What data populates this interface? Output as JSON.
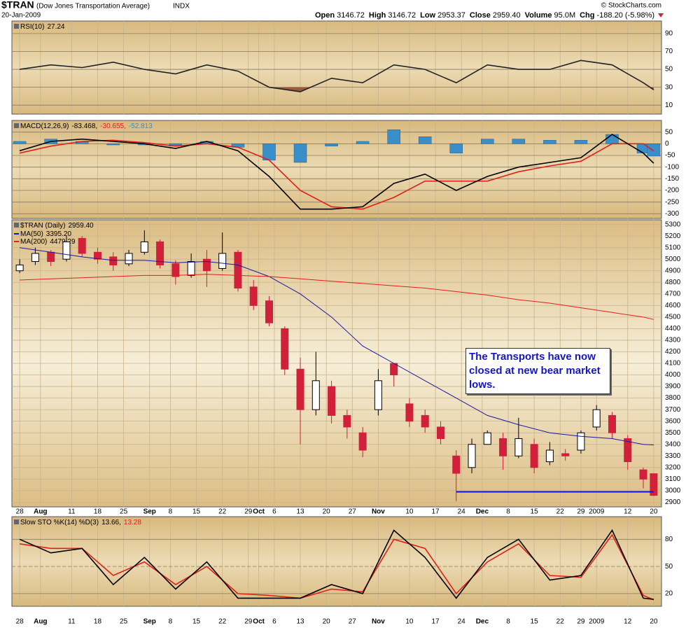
{
  "header": {
    "symbol": "$TRAN",
    "description": "(Dow Jones Transportation Average)",
    "exchange": "INDX",
    "date": "20-Jan-2009",
    "stats": [
      {
        "label": "Open",
        "value": "3146.72"
      },
      {
        "label": "High",
        "value": "3146.72"
      },
      {
        "label": "Low",
        "value": "2953.37"
      },
      {
        "label": "Close",
        "value": "2959.40"
      },
      {
        "label": "Volume",
        "value": "95.0M"
      },
      {
        "label": "Chg",
        "value": "-188.20 (-5.98%)"
      }
    ],
    "copyright": "© StockCharts.com"
  },
  "chart_data": [
    {
      "type": "line",
      "label_parts": [
        {
          "text": "RSI(10)",
          "color": "#000000"
        },
        {
          "text": "27.24",
          "color": "#000000"
        }
      ],
      "ylim": [
        0,
        104
      ],
      "yticks": [
        10,
        30,
        50,
        70,
        90
      ],
      "fill_below": 30,
      "fill_color": "#9b5a3c",
      "x": [
        0,
        6,
        12,
        18,
        24,
        30,
        36,
        42,
        48,
        54,
        60,
        66,
        72,
        78,
        84,
        90,
        96,
        102,
        108,
        114,
        120,
        122
      ],
      "series": [
        {
          "name": "RSI(10)",
          "color": "#222222",
          "kind": "line",
          "values": [
            50,
            55,
            52,
            58,
            50,
            45,
            55,
            48,
            30,
            25,
            40,
            35,
            55,
            50,
            35,
            55,
            50,
            50,
            60,
            55,
            35,
            27.24
          ]
        }
      ]
    },
    {
      "type": "combo",
      "label_parts": [
        {
          "text": "MACD(12,26,9)",
          "color": "#000000"
        },
        {
          "text": "-83.468,",
          "color": "#000000"
        },
        {
          "text": "-30.655,",
          "color": "#e0201a"
        },
        {
          "text": "-52.813",
          "color": "#3a8fc8"
        }
      ],
      "ylim": [
        -320,
        100
      ],
      "yticks": [
        50,
        0,
        -50,
        -100,
        -150,
        -200,
        -250,
        -300
      ],
      "x": [
        0,
        6,
        12,
        18,
        24,
        30,
        36,
        42,
        48,
        54,
        60,
        66,
        72,
        78,
        84,
        90,
        96,
        102,
        108,
        114,
        120,
        122
      ],
      "series": [
        {
          "name": "Histogram",
          "color": "#3a8fc8",
          "kind": "histogram",
          "values": [
            10,
            20,
            10,
            -5,
            -5,
            -10,
            10,
            -15,
            -70,
            -80,
            -10,
            10,
            60,
            30,
            -40,
            20,
            20,
            15,
            15,
            40,
            -40,
            -52.813
          ]
        },
        {
          "name": "Signal",
          "color": "#e0201a",
          "kind": "line",
          "values": [
            -40,
            -10,
            10,
            15,
            5,
            -10,
            0,
            -15,
            -70,
            -200,
            -270,
            -280,
            -230,
            -160,
            -160,
            -160,
            -120,
            -95,
            -75,
            0,
            0,
            -30.655
          ]
        },
        {
          "name": "MACD",
          "color": "#000000",
          "kind": "line",
          "values": [
            -30,
            10,
            20,
            10,
            0,
            -20,
            10,
            -30,
            -140,
            -280,
            -280,
            -270,
            -170,
            -130,
            -200,
            -140,
            -100,
            -80,
            -60,
            40,
            -40,
            -83.468
          ]
        }
      ]
    },
    {
      "type": "candlestick",
      "label_parts": [
        {
          "text": "$TRAN (Daily)",
          "color": "#000000"
        },
        {
          "text": "2959.40",
          "color": "#000000"
        }
      ],
      "ylim": [
        2860,
        5340
      ],
      "yticks": [
        2900,
        3000,
        3100,
        3200,
        3300,
        3400,
        3500,
        3600,
        3700,
        3800,
        3900,
        4000,
        4100,
        4200,
        4300,
        4400,
        4500,
        4600,
        4700,
        4800,
        4900,
        5000,
        5100,
        5200,
        5300
      ],
      "xlim": [
        -1.5,
        123.5
      ],
      "xticks": [
        {
          "value": 0,
          "label": "28"
        },
        {
          "value": 4,
          "label": "Aug"
        },
        {
          "value": 10,
          "label": "11"
        },
        {
          "value": 15,
          "label": "18"
        },
        {
          "value": 20,
          "label": "25"
        },
        {
          "value": 25,
          "label": "Sep"
        },
        {
          "value": 29,
          "label": "8"
        },
        {
          "value": 34,
          "label": "15"
        },
        {
          "value": 39,
          "label": "22"
        },
        {
          "value": 44,
          "label": "29"
        },
        {
          "value": 46,
          "label": "Oct"
        },
        {
          "value": 49,
          "label": "6"
        },
        {
          "value": 54,
          "label": "13"
        },
        {
          "value": 59,
          "label": "20"
        },
        {
          "value": 64,
          "label": "27"
        },
        {
          "value": 69,
          "label": "Nov"
        },
        {
          "value": 75,
          "label": "10"
        },
        {
          "value": 80,
          "label": "17"
        },
        {
          "value": 85,
          "label": "24"
        },
        {
          "value": 89,
          "label": "Dec"
        },
        {
          "value": 94,
          "label": "8"
        },
        {
          "value": 99,
          "label": "15"
        },
        {
          "value": 104,
          "label": "22"
        },
        {
          "value": 108,
          "label": "29"
        },
        {
          "value": 111,
          "label": "2009"
        },
        {
          "value": 117,
          "label": "12"
        },
        {
          "value": 122,
          "label": "20"
        }
      ],
      "candles": {
        "x": [
          0,
          3,
          6,
          9,
          12,
          15,
          18,
          21,
          24,
          27,
          30,
          33,
          36,
          39,
          42,
          45,
          48,
          51,
          54,
          57,
          60,
          63,
          66,
          69,
          72,
          75,
          78,
          81,
          84,
          87,
          90,
          93,
          96,
          99,
          102,
          105,
          108,
          111,
          114,
          117,
          120,
          122
        ],
        "open": [
          4900,
          4980,
          5060,
          5000,
          5180,
          5060,
          5020,
          4960,
          5060,
          5150,
          4960,
          4860,
          5000,
          4920,
          5060,
          4760,
          4640,
          4400,
          4050,
          3700,
          3900,
          3650,
          3500,
          3700,
          4100,
          3750,
          3650,
          3550,
          3300,
          3200,
          3400,
          3450,
          3300,
          3400,
          3250,
          3320,
          3350,
          3550,
          3650,
          3450,
          3180,
          3146.72
        ],
        "high": [
          5000,
          5100,
          5080,
          5200,
          5200,
          5100,
          5060,
          5080,
          5250,
          5170,
          4990,
          5050,
          5080,
          5230,
          5080,
          4820,
          4680,
          4420,
          4150,
          4200,
          3950,
          3700,
          3550,
          4050,
          4100,
          3800,
          3700,
          3600,
          3350,
          3450,
          3520,
          3500,
          3630,
          3450,
          3420,
          3360,
          3520,
          3740,
          3680,
          3480,
          3200,
          3146.72
        ],
        "low": [
          4880,
          4950,
          4940,
          4980,
          5020,
          4960,
          4900,
          4940,
          5040,
          4920,
          4780,
          4840,
          4760,
          4900,
          4720,
          4560,
          4420,
          4000,
          3400,
          3650,
          3580,
          3450,
          3290,
          3650,
          3900,
          3550,
          3500,
          3400,
          2910,
          3150,
          3400,
          3180,
          3280,
          3150,
          3220,
          3260,
          3320,
          3520,
          3450,
          3180,
          3020,
          2953.37
        ],
        "close": [
          4950,
          5050,
          4980,
          5150,
          5050,
          5000,
          4950,
          5050,
          5150,
          4950,
          4850,
          4980,
          4900,
          5050,
          4750,
          4600,
          4450,
          4050,
          3700,
          3950,
          3650,
          3550,
          3350,
          3950,
          4000,
          3600,
          3550,
          3450,
          3150,
          3400,
          3500,
          3300,
          3450,
          3200,
          3350,
          3300,
          3500,
          3700,
          3500,
          3250,
          3100,
          2959.4
        ],
        "up_color": "#ffffff",
        "down_color": "#d0203a"
      },
      "x": [
        0,
        6,
        12,
        18,
        24,
        30,
        36,
        42,
        48,
        54,
        60,
        66,
        72,
        78,
        84,
        90,
        96,
        102,
        108,
        114,
        120,
        122
      ],
      "series": [
        {
          "name": "MA(50)",
          "last_label": "3395.20",
          "color": "#1a1aa0",
          "kind": "line",
          "values": [
            5100,
            5060,
            5020,
            4990,
            4990,
            4970,
            4980,
            4950,
            4850,
            4700,
            4500,
            4250,
            4100,
            3950,
            3800,
            3650,
            3570,
            3500,
            3470,
            3450,
            3400,
            3395.2
          ]
        },
        {
          "name": "MA(200)",
          "last_label": "4479.29",
          "color": "#e0201a",
          "kind": "line",
          "values": [
            4820,
            4830,
            4840,
            4850,
            4860,
            4860,
            4870,
            4860,
            4850,
            4830,
            4810,
            4790,
            4770,
            4750,
            4720,
            4690,
            4650,
            4620,
            4580,
            4540,
            4500,
            4479.29
          ]
        }
      ],
      "support": {
        "value": 2990,
        "x": [
          84,
          122
        ],
        "color": "#1010e0"
      },
      "annotation": "The Transports have now closed at new bear market lows."
    },
    {
      "type": "line",
      "label_parts": [
        {
          "text": "Slow STO %K(14) %D(3)",
          "color": "#000000"
        },
        {
          "text": "13.66,",
          "color": "#000000"
        },
        {
          "text": "13.28",
          "color": "#e0201a"
        }
      ],
      "ylim": [
        6,
        105
      ],
      "yticks": [
        20,
        50,
        80
      ],
      "x": [
        0,
        6,
        12,
        18,
        24,
        30,
        36,
        42,
        48,
        54,
        60,
        66,
        72,
        78,
        84,
        90,
        96,
        102,
        108,
        114,
        120,
        122
      ],
      "series": [
        {
          "name": "%D",
          "color": "#e0201a",
          "kind": "line",
          "values": [
            75,
            70,
            70,
            40,
            55,
            30,
            50,
            20,
            18,
            15,
            25,
            22,
            80,
            70,
            20,
            55,
            75,
            40,
            38,
            85,
            18,
            13.28
          ]
        },
        {
          "name": "%K",
          "color": "#000000",
          "kind": "line",
          "values": [
            80,
            65,
            70,
            30,
            60,
            25,
            55,
            15,
            15,
            15,
            30,
            20,
            90,
            60,
            15,
            60,
            80,
            35,
            40,
            90,
            15,
            13.66
          ]
        }
      ]
    }
  ]
}
